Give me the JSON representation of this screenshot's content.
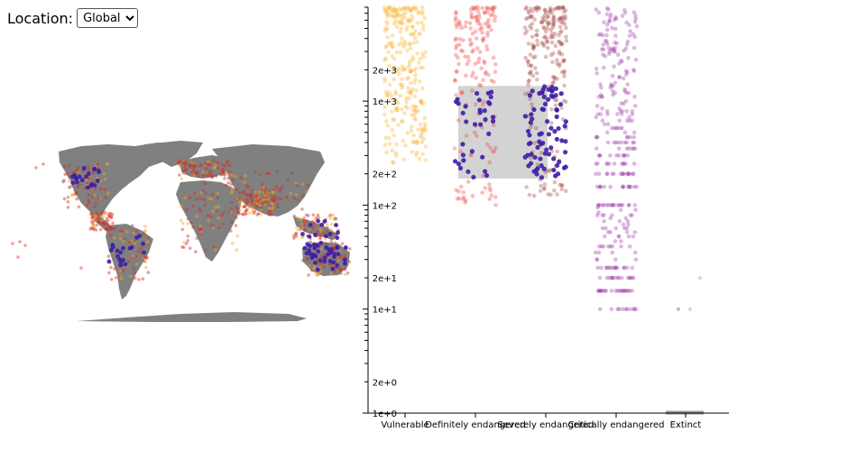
{
  "controls": {
    "location_label": "Location:",
    "location_options": [
      "Global"
    ],
    "location_selected": "Global"
  },
  "map": {
    "land_color": "#808080",
    "point_colors": [
      "#f5a623",
      "#e8231a",
      "#b33a3a",
      "#3d1ea6"
    ]
  },
  "chart_data": {
    "type": "scatter",
    "y_scale": "log",
    "ylim": [
      1,
      8000
    ],
    "y_tick_labels": [
      {
        "value": 1,
        "label": "1e+0"
      },
      {
        "value": 2,
        "label": "2e+0"
      },
      {
        "value": 10,
        "label": "1e+1"
      },
      {
        "value": 20,
        "label": "2e+1"
      },
      {
        "value": 100,
        "label": "1e+2"
      },
      {
        "value": 200,
        "label": "2e+2"
      },
      {
        "value": 1000,
        "label": "1e+3"
      },
      {
        "value": 2000,
        "label": "2e+3"
      }
    ],
    "categories": [
      {
        "name": "Vulnerable",
        "color": "#f7b32b",
        "y_min": 250,
        "y_max": 8000
      },
      {
        "name": "Definitely endangered",
        "color": "#f24040",
        "y_min": 100,
        "y_max": 8000
      },
      {
        "name": "Severely endangered",
        "color": "#a3413e",
        "y_min": 120,
        "y_max": 8000
      },
      {
        "name": "Critically endangered",
        "color": "#9c3aa6",
        "y_min": 10,
        "y_max": 8000
      },
      {
        "name": "Extinct",
        "color": "#999999",
        "y_min": 10,
        "y_max": 25
      }
    ],
    "selection": {
      "y_range": [
        180,
        1400
      ],
      "points_color": "#3d1ea6"
    },
    "grid": false,
    "legend": "none"
  }
}
